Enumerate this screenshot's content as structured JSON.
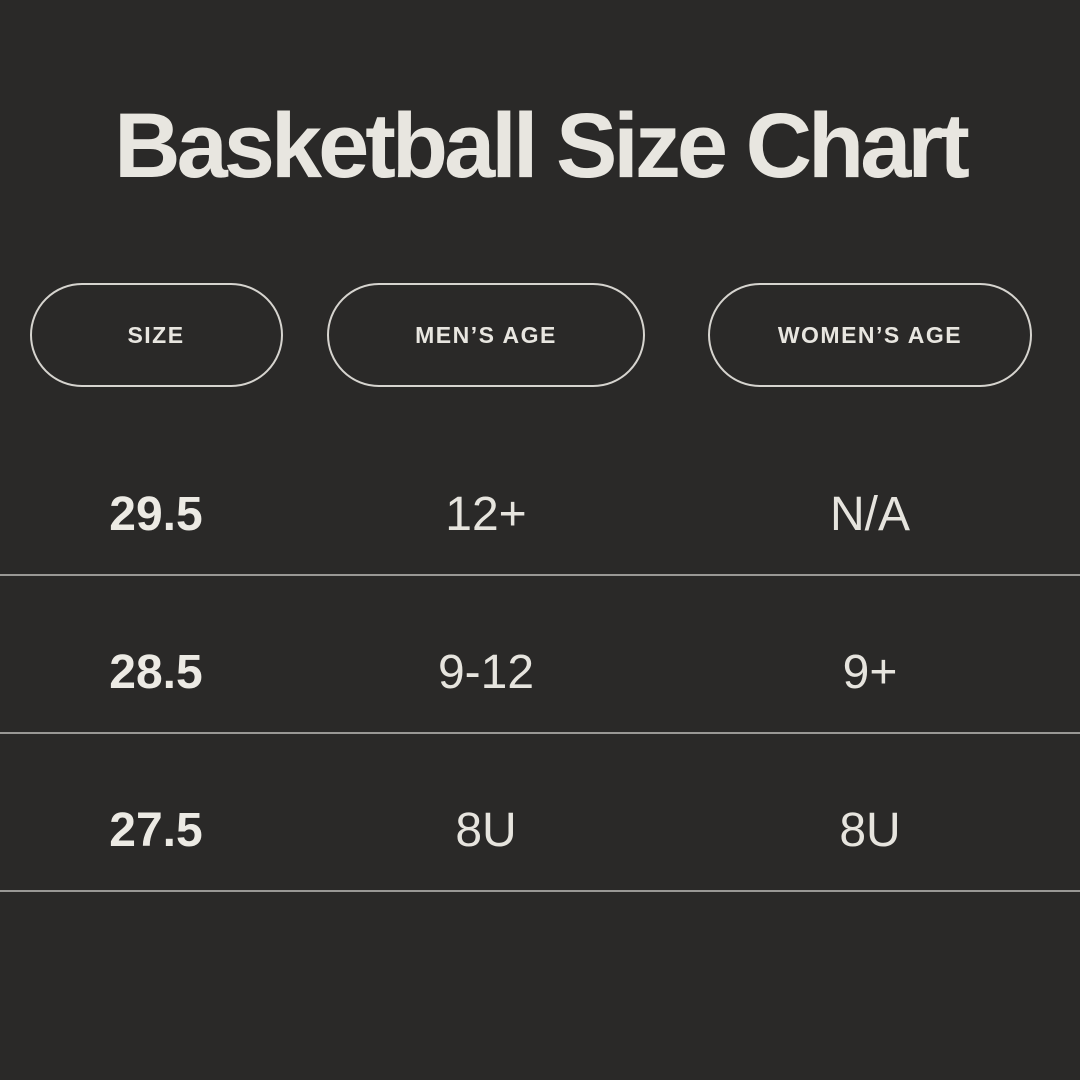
{
  "title": "Basketball Size Chart",
  "colors": {
    "background": "#2a2928",
    "text": "#e8e6e0",
    "pill_border": "#d6d4cf",
    "divider": "#d6d4cf"
  },
  "chart_data": {
    "type": "table",
    "title": "Basketball Size Chart",
    "columns": [
      "SIZE",
      "MEN’S AGE",
      "WOMEN’S AGE"
    ],
    "rows": [
      [
        "29.5",
        "12+",
        "N/A"
      ],
      [
        "28.5",
        "9-12",
        "9+"
      ],
      [
        "27.5",
        "8U",
        "8U"
      ]
    ]
  }
}
